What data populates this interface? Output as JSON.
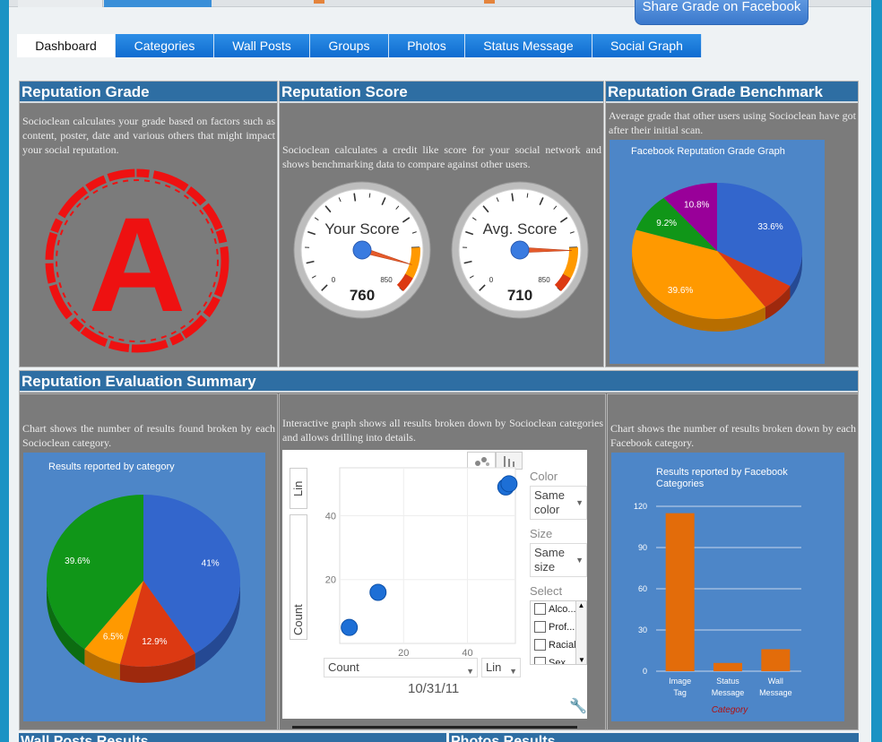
{
  "header": {
    "share_button": "Share Grade on Facebook"
  },
  "tabs": [
    {
      "label": "Dashboard",
      "active": true
    },
    {
      "label": "Categories"
    },
    {
      "label": "Wall Posts"
    },
    {
      "label": "Groups"
    },
    {
      "label": "Photos"
    },
    {
      "label": "Status Message"
    },
    {
      "label": "Social Graph"
    }
  ],
  "reputation_grade": {
    "title": "Reputation Grade",
    "description": "Socioclean calculates your grade based on factors such as content, poster, date and various others that might impact your social reputation.",
    "grade": "A",
    "stamp_color": "#ee1111"
  },
  "reputation_score": {
    "title": "Reputation Score",
    "description": "Socioclean calculates a credit like score for your social network and shows benchmarking data to compare against other users.",
    "gauges": [
      {
        "label": "Your Score",
        "value": "760",
        "min": "0",
        "max": "850",
        "numeric": 760
      },
      {
        "label": "Avg. Score",
        "value": "710",
        "min": "0",
        "max": "850",
        "numeric": 710
      }
    ]
  },
  "benchmark": {
    "title": "Reputation Grade Benchmark",
    "description": "Average grade that other users using Socioclean have got after their initial scan.",
    "chart_title": "Facebook Reputation Grade Graph"
  },
  "evaluation": {
    "title": "Reputation Evaluation Summary",
    "left_description": "Chart shows the number of results found broken by each Socioclean category.",
    "left_chart_title": "Results reported by category",
    "middle_description": "Interactive graph shows all results broken down by Socioclean categories and allows drilling into details.",
    "right_description": "Chart shows the number of results broken down by each Facebook category.",
    "right_chart_title": "Results reported by Facebook Categories"
  },
  "interactive": {
    "y_scale": "Lin",
    "y_axis": "Count",
    "x_axis_select": "Count",
    "x_scale": "Lin",
    "date": "10/31/11",
    "color_label": "Color",
    "color_value": "Same color",
    "size_label": "Size",
    "size_value": "Same size",
    "select_label": "Select",
    "select_items": [
      "Alco...",
      "Prof...",
      "Racial",
      "Sex..."
    ],
    "x_ticks": [
      "20",
      "40"
    ],
    "y_ticks": [
      "20",
      "40"
    ]
  },
  "bottom": {
    "left_title": "Wall Posts Results",
    "right_title": "Photos Results"
  },
  "chart_data": [
    {
      "type": "pie",
      "title": "Facebook Reputation Grade Graph",
      "labels": [
        "33.6%",
        "",
        "39.6%",
        "9.2%",
        "10.8%"
      ],
      "values": [
        33.6,
        6.8,
        39.6,
        9.2,
        10.8
      ],
      "colors": [
        "#3366cc",
        "#dc3912",
        "#ff9900",
        "#109618",
        "#990099"
      ]
    },
    {
      "type": "pie",
      "title": "Results reported by category",
      "labels": [
        "41%",
        "12.9%",
        "6.5%",
        "39.6%"
      ],
      "values": [
        41,
        12.9,
        6.5,
        39.6
      ],
      "colors": [
        "#3366cc",
        "#dc3912",
        "#ff9900",
        "#109618"
      ]
    },
    {
      "type": "scatter",
      "x": [
        3,
        12,
        52,
        53
      ],
      "y": [
        5,
        16,
        49,
        50
      ],
      "xlim": [
        0,
        55
      ],
      "ylim": [
        0,
        55
      ],
      "xticks": [
        20,
        40
      ],
      "yticks": [
        20,
        40
      ],
      "ylabel": "Count",
      "color": "#1d6fd6"
    },
    {
      "type": "bar",
      "title": "Results reported by Facebook Categories",
      "categories": [
        "Image Tag",
        "Status Message",
        "Wall Message"
      ],
      "values": [
        115,
        6,
        16
      ],
      "ylim": [
        0,
        120
      ],
      "yticks": [
        0,
        30,
        60,
        90,
        120
      ],
      "xlabel": "Category",
      "color": "#e36c0a"
    }
  ]
}
